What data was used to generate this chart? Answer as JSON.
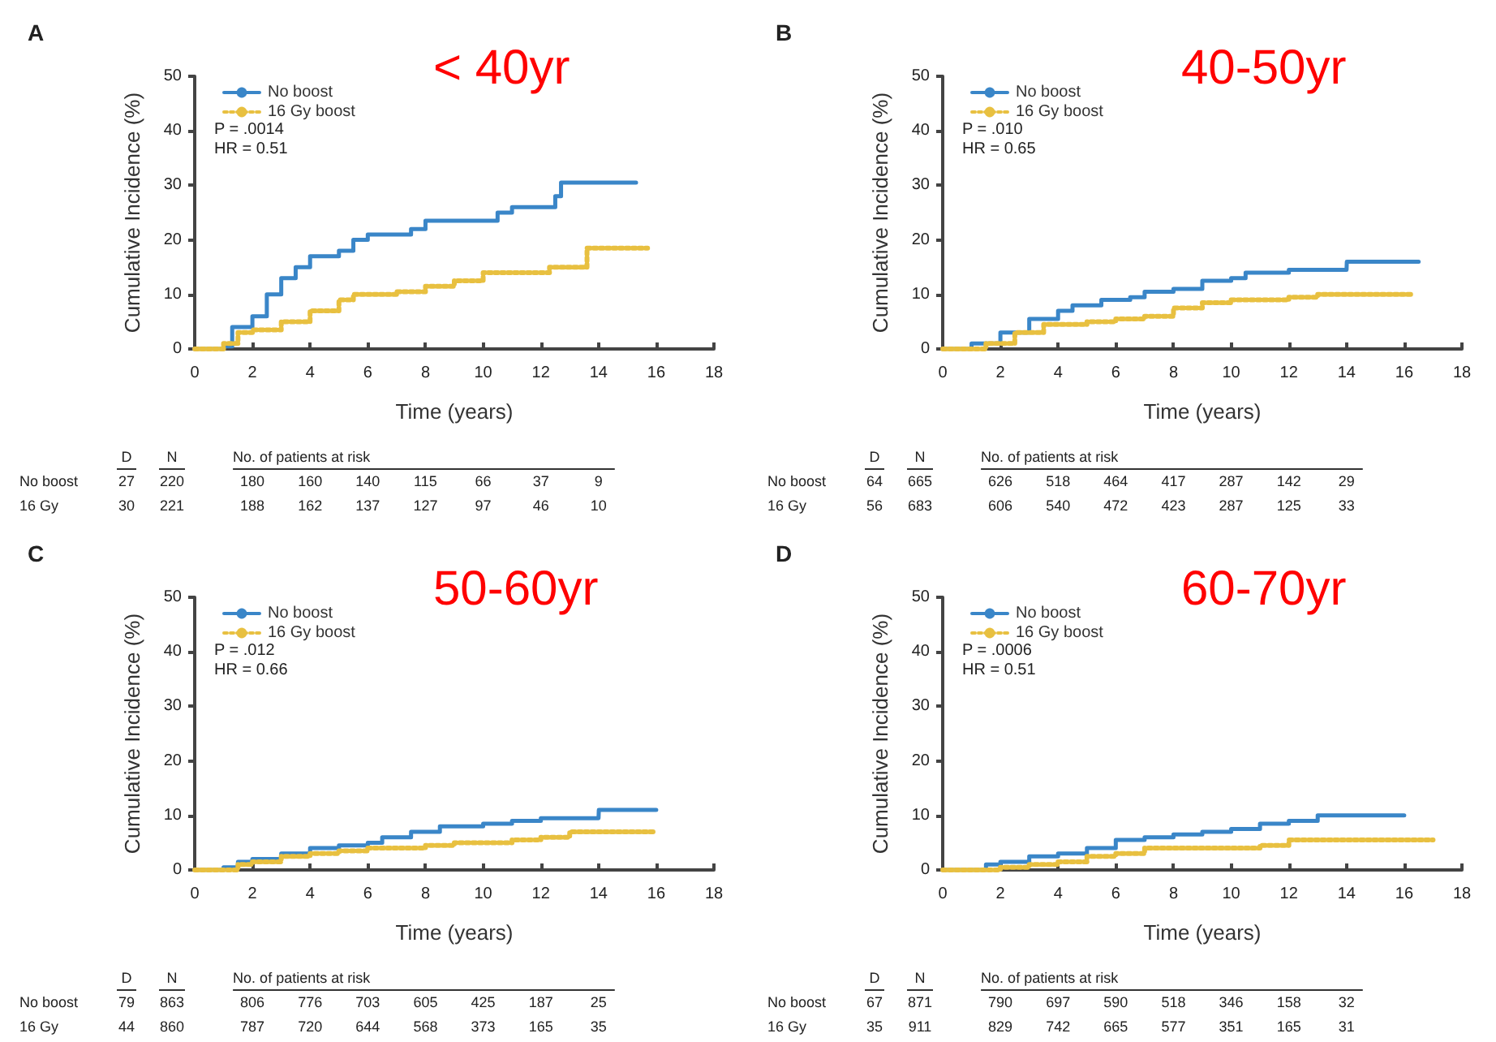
{
  "chart_data": [
    {
      "type": "step",
      "title": "A",
      "subtitle": "< 40yr",
      "xlabel": "Time (years)",
      "ylabel": "Cumulative Incidence (%)",
      "xlim": [
        0,
        18
      ],
      "xticks": [
        0,
        2,
        4,
        6,
        8,
        10,
        12,
        14,
        16,
        18
      ],
      "ylim": [
        0,
        50
      ],
      "yticks": [
        0,
        10,
        20,
        30,
        40,
        50
      ],
      "legend": "top left",
      "marker": "none",
      "series": [
        {
          "name": "No boost",
          "color": "#3a86c8",
          "line_style": "solid",
          "x": [
            0,
            1,
            1.3,
            2,
            2.5,
            3,
            3.5,
            4,
            5,
            5.5,
            6,
            7,
            7.5,
            8,
            10,
            10.5,
            11,
            12.3,
            12.5,
            12.7,
            15.3
          ],
          "values": [
            0,
            0.5,
            4,
            6,
            10,
            13,
            15,
            17,
            18,
            20,
            21,
            21,
            22,
            23.5,
            23.5,
            25,
            26,
            26,
            28,
            30.5,
            30.5
          ]
        },
        {
          "name": "16 Gy boost",
          "color": "#e8c040",
          "line_style": "dotted",
          "x": [
            0,
            1,
            1.5,
            2,
            3,
            4,
            5,
            5.5,
            7,
            8,
            9,
            10,
            12,
            12.3,
            13.5,
            13.6,
            15.7
          ],
          "values": [
            0,
            1,
            3,
            3.5,
            5,
            7,
            9,
            10,
            10.5,
            11.5,
            12.5,
            14,
            14,
            15,
            15,
            18.5,
            18.5
          ]
        }
      ],
      "annotations": [
        "P = .0014",
        "HR = 0.51",
        "D",
        "N",
        "No. of patients at risk",
        "No boost",
        "27",
        "220",
        "180",
        "160",
        "140",
        "115",
        "66",
        "37",
        "9",
        "16 Gy",
        "30",
        "221",
        "188",
        "162",
        "137",
        "127",
        "97",
        "46",
        "10"
      ]
    },
    {
      "type": "step",
      "title": "B",
      "subtitle": "40-50yr",
      "xlabel": "Time (years)",
      "ylabel": "Cumulative Incidence (%)",
      "xlim": [
        0,
        18
      ],
      "xticks": [
        0,
        2,
        4,
        6,
        8,
        10,
        12,
        14,
        16,
        18
      ],
      "ylim": [
        0,
        50
      ],
      "yticks": [
        0,
        10,
        20,
        30,
        40,
        50
      ],
      "legend": "top left",
      "marker": "none",
      "series": [
        {
          "name": "No boost",
          "color": "#3a86c8",
          "line_style": "solid",
          "x": [
            0,
            1,
            1.5,
            2,
            3,
            4,
            4.5,
            5.5,
            6.5,
            7,
            8,
            9,
            10,
            10.5,
            12,
            14,
            14.01,
            16.5
          ],
          "values": [
            0,
            1,
            1,
            3,
            5.5,
            7,
            8,
            9,
            9.5,
            10.5,
            11,
            12.5,
            13,
            14,
            14.5,
            14.5,
            16,
            16
          ]
        },
        {
          "name": "16 Gy boost",
          "color": "#e8c040",
          "line_style": "dotted",
          "x": [
            0,
            1.5,
            2.5,
            3.5,
            5,
            6,
            7,
            8,
            9,
            10,
            12,
            13,
            16.3
          ],
          "values": [
            0,
            1,
            3,
            4.5,
            5,
            5.5,
            6,
            7.5,
            8.5,
            9,
            9.5,
            10,
            10
          ]
        }
      ],
      "annotations": [
        "P = .010",
        "HR = 0.65",
        "D",
        "N",
        "No. of patients at risk",
        "No boost",
        "64",
        "665",
        "626",
        "518",
        "464",
        "417",
        "287",
        "142",
        "29",
        "16 Gy",
        "56",
        "683",
        "606",
        "540",
        "472",
        "423",
        "287",
        "125",
        "33"
      ]
    },
    {
      "type": "step",
      "title": "C",
      "subtitle": "50-60yr",
      "xlabel": "Time (years)",
      "ylabel": "Cumulative Incidence (%)",
      "xlim": [
        0,
        18
      ],
      "xticks": [
        0,
        2,
        4,
        6,
        8,
        10,
        12,
        14,
        16,
        18
      ],
      "ylim": [
        0,
        50
      ],
      "yticks": [
        0,
        10,
        20,
        30,
        40,
        50
      ],
      "legend": "top left",
      "marker": "none",
      "series": [
        {
          "name": "No boost",
          "color": "#3a86c8",
          "line_style": "solid",
          "x": [
            0,
            1,
            1.5,
            2,
            3,
            4,
            5,
            6,
            6.5,
            7.5,
            8.5,
            10,
            11,
            12,
            14,
            14.01,
            16
          ],
          "values": [
            0,
            0.5,
            1.5,
            2,
            3,
            4,
            4.5,
            5,
            6,
            7,
            8,
            8.5,
            9,
            9.5,
            9.5,
            11,
            11
          ]
        },
        {
          "name": "16 Gy boost",
          "color": "#e8c040",
          "line_style": "dotted",
          "x": [
            0,
            1.5,
            2,
            3,
            4,
            5,
            6,
            8,
            9,
            11,
            12,
            13,
            16
          ],
          "values": [
            0,
            1,
            1.5,
            2.5,
            3,
            3.5,
            4,
            4.5,
            5,
            5.5,
            6,
            7,
            7
          ]
        }
      ],
      "annotations": [
        "P = .012",
        "HR = 0.66",
        "D",
        "N",
        "No. of patients at risk",
        "No boost",
        "79",
        "863",
        "806",
        "776",
        "703",
        "605",
        "425",
        "187",
        "25",
        "16 Gy",
        "44",
        "860",
        "787",
        "720",
        "644",
        "568",
        "373",
        "165",
        "35"
      ]
    },
    {
      "type": "step",
      "title": "D",
      "subtitle": "60-70yr",
      "xlabel": "Time (years)",
      "ylabel": "Cumulative Incidence (%)",
      "xlim": [
        0,
        18
      ],
      "xticks": [
        0,
        2,
        4,
        6,
        8,
        10,
        12,
        14,
        16,
        18
      ],
      "ylim": [
        0,
        50
      ],
      "yticks": [
        0,
        10,
        20,
        30,
        40,
        50
      ],
      "legend": "top left",
      "marker": "none",
      "series": [
        {
          "name": "No boost",
          "color": "#3a86c8",
          "line_style": "solid",
          "x": [
            0,
            1.5,
            2,
            3,
            4,
            5,
            6,
            7,
            8,
            9,
            10,
            11,
            12,
            13,
            16
          ],
          "values": [
            0,
            1,
            1.5,
            2.5,
            3,
            4,
            5.5,
            6,
            6.5,
            7,
            7.5,
            8.5,
            9,
            10,
            10
          ]
        },
        {
          "name": "16 Gy boost",
          "color": "#e8c040",
          "line_style": "dotted",
          "x": [
            0,
            2,
            3,
            4,
            5,
            6,
            7,
            8,
            11,
            12,
            17
          ],
          "values": [
            0,
            0.5,
            1,
            1.5,
            2.5,
            3,
            4,
            4,
            4.5,
            5.5,
            5.5
          ]
        }
      ],
      "annotations": [
        "P = .0006",
        "HR = 0.51",
        "D",
        "N",
        "No. of patients at risk",
        "No boost",
        "67",
        "871",
        "790",
        "697",
        "590",
        "518",
        "346",
        "158",
        "32",
        "16 Gy",
        "35",
        "911",
        "829",
        "742",
        "665",
        "577",
        "351",
        "165",
        "31"
      ]
    }
  ]
}
